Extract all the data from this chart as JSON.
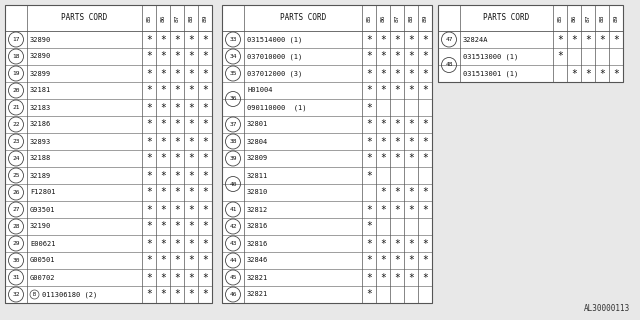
{
  "bg_color": "#e8e8e8",
  "table_bg": "#ffffff",
  "line_color": "#555555",
  "text_color": "#111111",
  "col_headers": [
    "85",
    "86",
    "87",
    "88",
    "89"
  ],
  "watermark": "AL30000113",
  "table1": {
    "rows": [
      {
        "num": "17",
        "part": "32890",
        "stars": [
          1,
          1,
          1,
          1,
          1
        ]
      },
      {
        "num": "18",
        "part": "32890",
        "stars": [
          1,
          1,
          1,
          1,
          1
        ]
      },
      {
        "num": "19",
        "part": "32899",
        "stars": [
          1,
          1,
          1,
          1,
          1
        ]
      },
      {
        "num": "20",
        "part": "32181",
        "stars": [
          1,
          1,
          1,
          1,
          1
        ]
      },
      {
        "num": "21",
        "part": "32183",
        "stars": [
          1,
          1,
          1,
          1,
          1
        ]
      },
      {
        "num": "22",
        "part": "32186",
        "stars": [
          1,
          1,
          1,
          1,
          1
        ]
      },
      {
        "num": "23",
        "part": "32893",
        "stars": [
          1,
          1,
          1,
          1,
          1
        ]
      },
      {
        "num": "24",
        "part": "32188",
        "stars": [
          1,
          1,
          1,
          1,
          1
        ]
      },
      {
        "num": "25",
        "part": "32189",
        "stars": [
          1,
          1,
          1,
          1,
          1
        ]
      },
      {
        "num": "26",
        "part": "F12801",
        "stars": [
          1,
          1,
          1,
          1,
          1
        ]
      },
      {
        "num": "27",
        "part": "G93501",
        "stars": [
          1,
          1,
          1,
          1,
          1
        ]
      },
      {
        "num": "28",
        "part": "32190",
        "stars": [
          1,
          1,
          1,
          1,
          1
        ]
      },
      {
        "num": "29",
        "part": "E00621",
        "stars": [
          1,
          1,
          1,
          1,
          1
        ]
      },
      {
        "num": "30",
        "part": "G00501",
        "stars": [
          1,
          1,
          1,
          1,
          1
        ]
      },
      {
        "num": "31",
        "part": "G00702",
        "stars": [
          1,
          1,
          1,
          1,
          1
        ]
      },
      {
        "num": "32",
        "part": "011306180 (2)",
        "stars": [
          1,
          1,
          1,
          1,
          1
        ],
        "b_circle": true
      }
    ]
  },
  "table2": {
    "rows": [
      {
        "num": "33",
        "part": "031514000 (1)",
        "stars": [
          1,
          1,
          1,
          1,
          1
        ]
      },
      {
        "num": "34",
        "part": "037010000 (1)",
        "stars": [
          1,
          1,
          1,
          1,
          1
        ]
      },
      {
        "num": "35",
        "part": "037012000 (3)",
        "stars": [
          1,
          1,
          1,
          1,
          1
        ]
      },
      {
        "num": "36",
        "part": "H01004",
        "stars": [
          1,
          1,
          1,
          1,
          1
        ],
        "sub_a": true
      },
      {
        "num": "36",
        "part": "090110000  (1)",
        "stars": [
          1,
          0,
          0,
          0,
          0
        ],
        "sub_b": true
      },
      {
        "num": "37",
        "part": "32801",
        "stars": [
          1,
          1,
          1,
          1,
          1
        ]
      },
      {
        "num": "38",
        "part": "32804",
        "stars": [
          1,
          1,
          1,
          1,
          1
        ]
      },
      {
        "num": "39",
        "part": "32809",
        "stars": [
          1,
          1,
          1,
          1,
          1
        ]
      },
      {
        "num": "40",
        "part": "32811",
        "stars": [
          1,
          0,
          0,
          0,
          0
        ],
        "sub_a": true
      },
      {
        "num": "40",
        "part": "32810",
        "stars": [
          0,
          1,
          1,
          1,
          1
        ],
        "sub_b": true
      },
      {
        "num": "41",
        "part": "32812",
        "stars": [
          1,
          1,
          1,
          1,
          1
        ]
      },
      {
        "num": "42",
        "part": "32816",
        "stars": [
          1,
          0,
          0,
          0,
          0
        ]
      },
      {
        "num": "43",
        "part": "32816",
        "stars": [
          1,
          1,
          1,
          1,
          1
        ]
      },
      {
        "num": "44",
        "part": "32846",
        "stars": [
          1,
          1,
          1,
          1,
          1
        ]
      },
      {
        "num": "45",
        "part": "32821",
        "stars": [
          1,
          1,
          1,
          1,
          1
        ]
      },
      {
        "num": "46",
        "part": "32821",
        "stars": [
          1,
          0,
          0,
          0,
          0
        ]
      }
    ]
  },
  "table3": {
    "rows": [
      {
        "num": "47",
        "part": "32824A",
        "stars": [
          1,
          1,
          1,
          1,
          1
        ]
      },
      {
        "num": "48",
        "part": "031513000 (1)",
        "stars": [
          1,
          0,
          0,
          0,
          0
        ],
        "sub_a": true
      },
      {
        "num": "48",
        "part": "031513001 (1)",
        "stars": [
          0,
          1,
          1,
          1,
          1
        ],
        "sub_b": true
      }
    ]
  }
}
